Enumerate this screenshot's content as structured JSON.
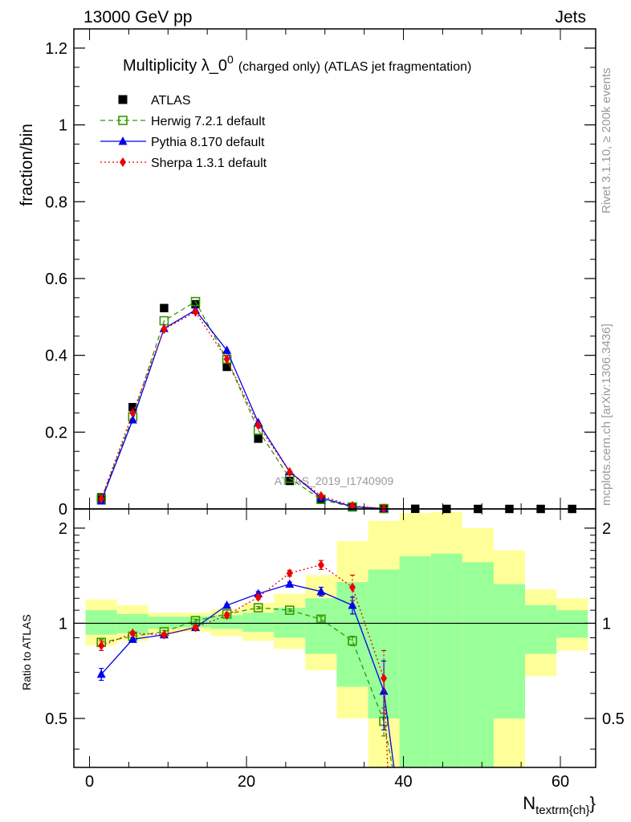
{
  "header": {
    "left": "13000 GeV pp",
    "right": "Jets"
  },
  "side_texts": {
    "rivet": "Rivet 3.1.10, ≥ 200k events",
    "mcplots": "mcplots.cern.ch [arXiv:1306.3436]"
  },
  "watermark": "ATLAS_2019_I1740909",
  "chart_data": [
    {
      "type": "scatter",
      "title": "Multiplicity λ_0",
      "title_sup": "0",
      "title_rest": "(charged only) (ATLAS jet fragmentation)",
      "xlabel": "",
      "ylabel": "fraction/bin",
      "xlim": [
        -2,
        64.5
      ],
      "ylim": [
        0,
        1.25
      ],
      "yticks": [
        "0",
        "0.2",
        "0.4",
        "0.6",
        "0.8",
        "1",
        "1.2"
      ],
      "legend_position": "top-left",
      "series": [
        {
          "name": "ATLAS",
          "color": "#000000",
          "marker": "square-filled",
          "x": [
            1.5,
            5.5,
            9.5,
            13.5,
            17.5,
            21.5,
            25.5,
            29.5,
            33.5,
            37.5,
            41.5,
            45.5,
            49.5,
            53.5,
            57.5,
            61.5
          ],
          "y": [
            0.03,
            0.265,
            0.523,
            0.533,
            0.37,
            0.183,
            0.073,
            0.024,
            0.006,
            0.0015,
            0.0004,
            0.0001,
            0.0,
            0.0,
            0.0,
            0.0
          ]
        },
        {
          "name": "Herwig 7.2.1 default",
          "color": "#339900",
          "marker": "square-open",
          "line": "dashed",
          "x": [
            1.5,
            5.5,
            9.5,
            13.5,
            17.5,
            21.5,
            25.5,
            29.5,
            33.5,
            37.5
          ],
          "y": [
            0.026,
            0.24,
            0.49,
            0.54,
            0.39,
            0.205,
            0.08,
            0.025,
            0.005,
            0.001
          ]
        },
        {
          "name": "Pythia 8.170 default",
          "color": "#0000ee",
          "marker": "triangle-filled",
          "line": "solid",
          "x": [
            1.5,
            5.5,
            9.5,
            13.5,
            17.5,
            21.5,
            25.5,
            29.5,
            33.5,
            37.5
          ],
          "y": [
            0.021,
            0.232,
            0.47,
            0.518,
            0.413,
            0.225,
            0.097,
            0.029,
            0.006,
            0.001
          ]
        },
        {
          "name": "Sherpa 1.3.1 default",
          "color": "#ee0000",
          "marker": "diamond-filled",
          "line": "dotted",
          "x": [
            1.5,
            5.5,
            9.5,
            13.5,
            17.5,
            21.5,
            25.5,
            29.5,
            33.5,
            37.5
          ],
          "y": [
            0.026,
            0.25,
            0.468,
            0.513,
            0.39,
            0.218,
            0.096,
            0.034,
            0.008,
            0.001
          ]
        }
      ]
    },
    {
      "type": "scatter",
      "title": "",
      "xlabel": "N",
      "xlabel_sub": "textrm{ch}",
      "xlabel_close": "}",
      "ylabel": "Ratio to ATLAS",
      "xlim": [
        -2,
        64.5
      ],
      "ylim": [
        0.35,
        2.3
      ],
      "yticks": [
        "0.5",
        "1",
        "2"
      ],
      "xticks": [
        "0",
        "20",
        "40",
        "60"
      ],
      "reference_line": 1,
      "bands": {
        "x_edges": [
          -0.5,
          3.5,
          7.5,
          11.5,
          15.5,
          19.5,
          23.5,
          27.5,
          31.5,
          35.5,
          39.5,
          43.5,
          47.5,
          51.5,
          55.5,
          59.5,
          63.5
        ],
        "inner_color": "#99ff99",
        "outer_color": "#ffff99",
        "inner_low": [
          0.92,
          0.93,
          0.96,
          0.97,
          0.96,
          0.94,
          0.9,
          0.8,
          0.63,
          0.5,
          0.3,
          0.3,
          0.3,
          0.5,
          0.8,
          0.9
        ],
        "inner_high": [
          1.1,
          1.07,
          1.05,
          1.05,
          1.06,
          1.08,
          1.12,
          1.2,
          1.35,
          1.48,
          1.63,
          1.66,
          1.56,
          1.33,
          1.14,
          1.1
        ],
        "outer_low": [
          0.85,
          0.88,
          0.93,
          0.94,
          0.91,
          0.88,
          0.83,
          0.71,
          0.5,
          0.3,
          0.3,
          0.3,
          0.3,
          0.3,
          0.68,
          0.82
        ],
        "outer_high": [
          1.19,
          1.14,
          1.08,
          1.08,
          1.11,
          1.16,
          1.24,
          1.42,
          1.82,
          2.11,
          2.23,
          2.25,
          2.0,
          1.7,
          1.28,
          1.2
        ]
      },
      "series": [
        {
          "name": "Herwig 7.2.1 default",
          "color": "#339900",
          "marker": "square-open",
          "line": "dashed",
          "x": [
            1.5,
            5.5,
            9.5,
            13.5,
            17.5,
            21.5,
            25.5,
            29.5,
            33.5,
            37.5,
            38.6
          ],
          "y": [
            0.87,
            0.91,
            0.94,
            1.02,
            1.07,
            1.12,
            1.1,
            1.03,
            0.88,
            0.49,
            0.3
          ],
          "err": [
            0.02,
            0.01,
            0.01,
            0.01,
            0.01,
            0.01,
            0.01,
            0.02,
            0.03,
            0.05,
            0
          ]
        },
        {
          "name": "Pythia 8.170 default",
          "color": "#0000ee",
          "marker": "triangle-filled",
          "line": "solid",
          "x": [
            1.5,
            5.5,
            9.5,
            13.5,
            17.5,
            21.5,
            25.5,
            29.5,
            33.5,
            37.5,
            38.8
          ],
          "y": [
            0.69,
            0.89,
            0.92,
            0.97,
            1.14,
            1.24,
            1.33,
            1.26,
            1.14,
            0.61,
            0.3
          ],
          "err": [
            0.03,
            0.01,
            0.01,
            0.01,
            0.01,
            0.02,
            0.02,
            0.04,
            0.07,
            0.15,
            0
          ]
        },
        {
          "name": "Sherpa 1.3.1 default",
          "color": "#ee0000",
          "marker": "diamond-filled",
          "line": "dotted",
          "x": [
            1.5,
            5.5,
            9.5,
            13.5,
            17.5,
            21.5,
            25.5,
            29.5,
            33.5,
            37.5,
            38.0
          ],
          "y": [
            0.85,
            0.93,
            0.92,
            0.97,
            1.06,
            1.21,
            1.44,
            1.53,
            1.3,
            0.67,
            0.3
          ],
          "err": [
            0.03,
            0.01,
            0.01,
            0.01,
            0.01,
            0.02,
            0.03,
            0.05,
            0.12,
            0.15,
            0
          ]
        }
      ]
    }
  ]
}
